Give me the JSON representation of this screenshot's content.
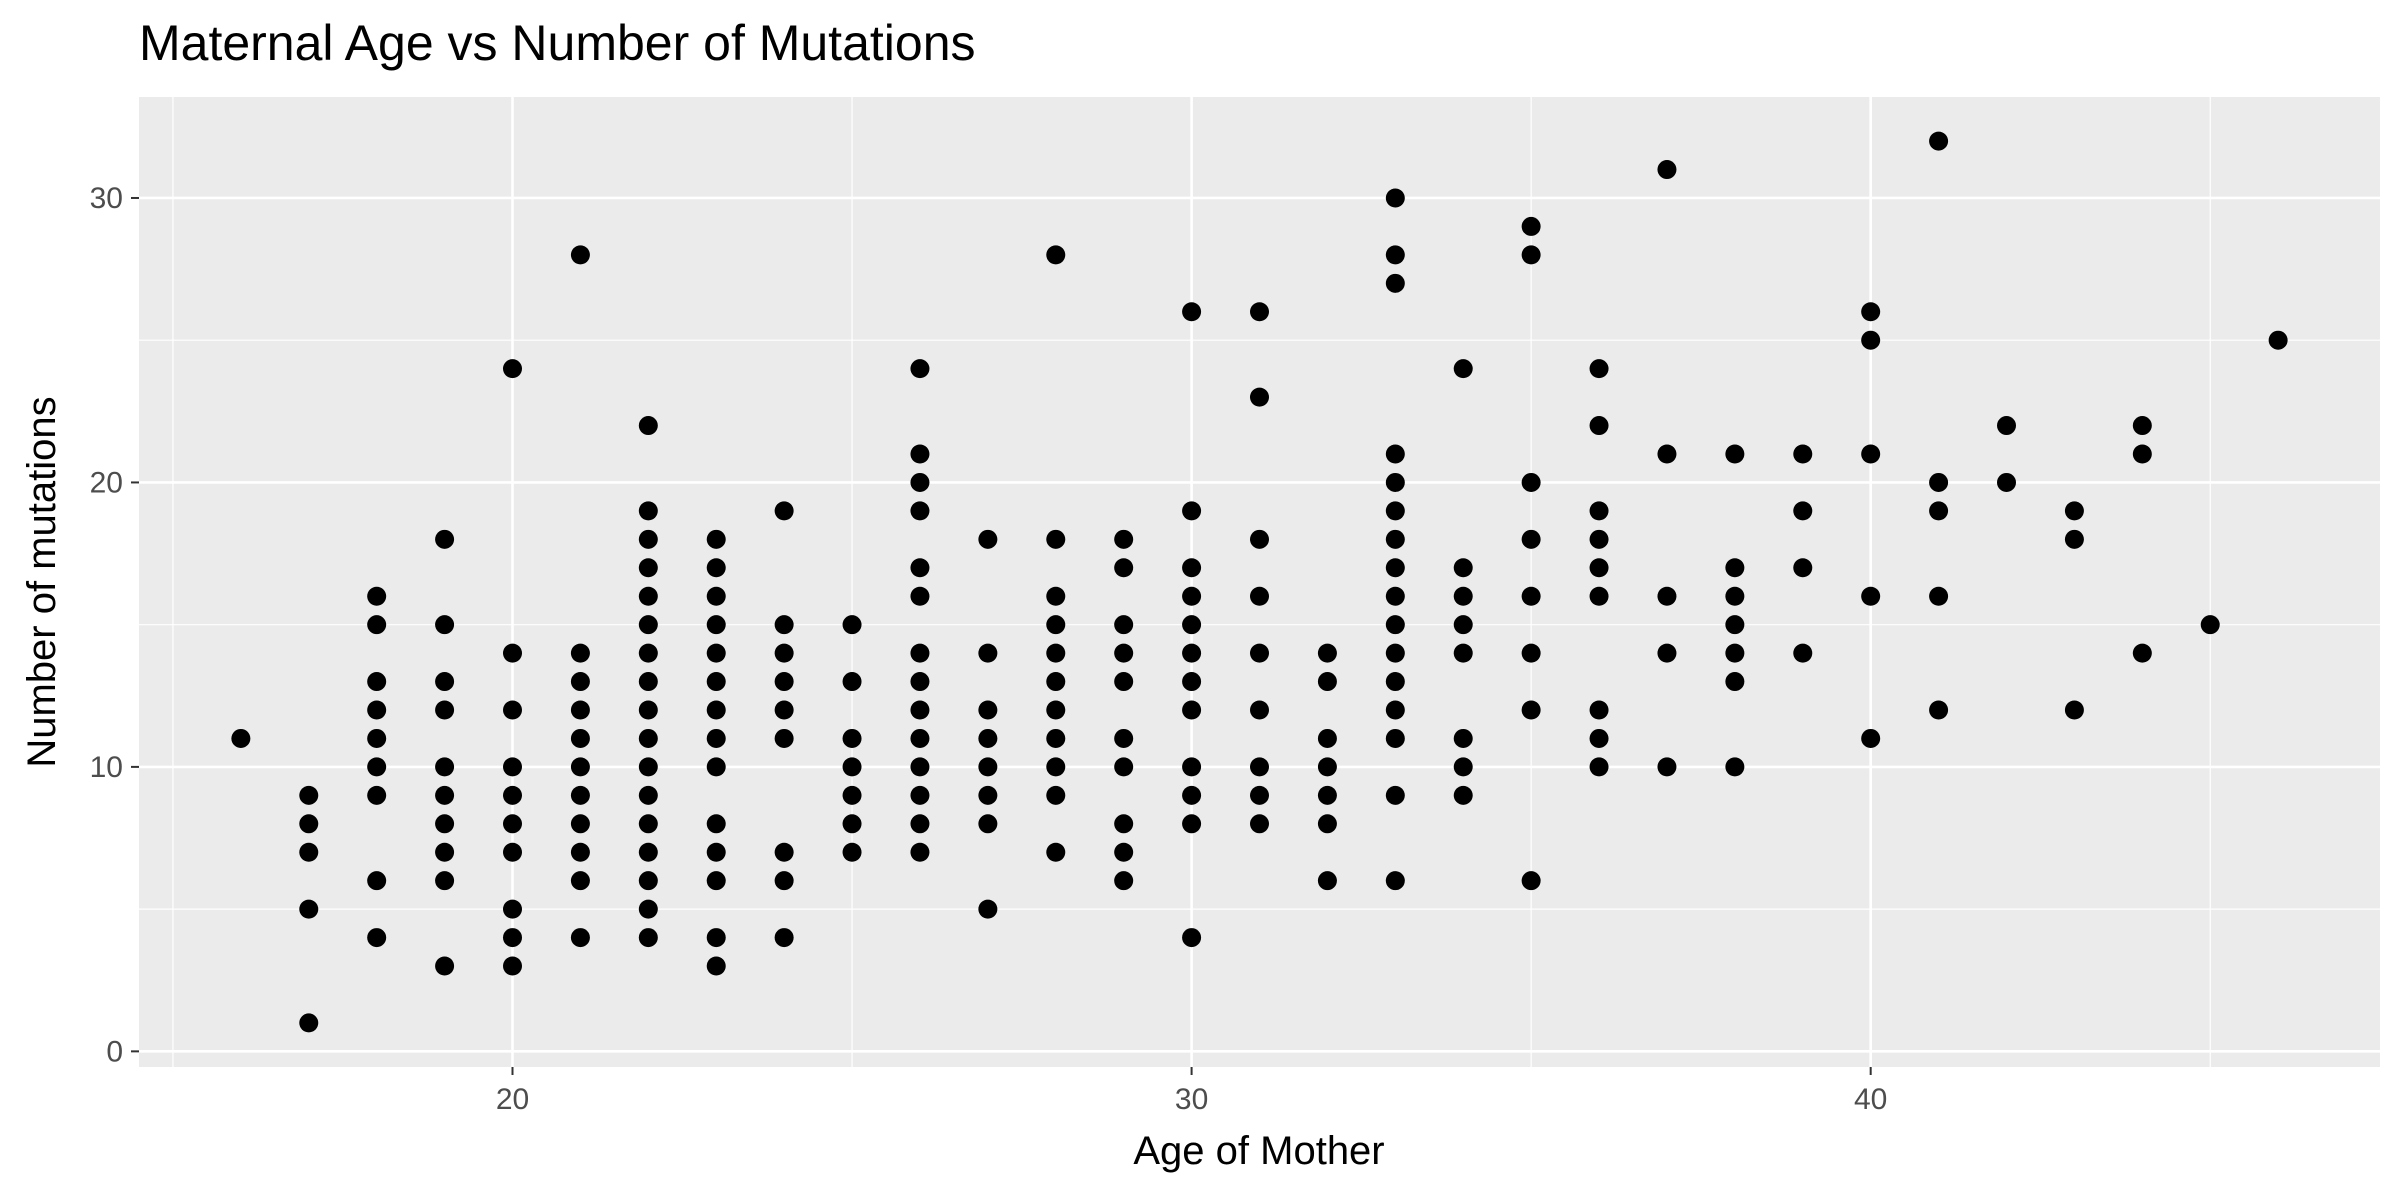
{
  "chart_data": {
    "type": "scatter",
    "title": "Maternal Age vs Number of Mutations",
    "xlabel": "Age of Mother",
    "ylabel": "Number of mutations",
    "xlim": [
      14.5,
      47.5
    ],
    "ylim": [
      -0.55,
      33.55
    ],
    "x_ticks": [
      20,
      30,
      40
    ],
    "y_ticks": [
      0,
      10,
      20,
      30
    ],
    "x_minor_ticks": [
      15,
      25,
      35,
      45
    ],
    "y_minor_ticks": [
      5,
      15,
      25
    ],
    "grid": true,
    "legend": "none",
    "colors": {
      "panel_background": "#ebebeb",
      "grid": "#ffffff",
      "point": "#000000",
      "tick_text": "#4d4d4d",
      "tick_mark": "#333333"
    },
    "points": [
      [
        16,
        11
      ],
      [
        17,
        1
      ],
      [
        17,
        5
      ],
      [
        17,
        7
      ],
      [
        17,
        8
      ],
      [
        17,
        9
      ],
      [
        18,
        4
      ],
      [
        18,
        6
      ],
      [
        18,
        9
      ],
      [
        18,
        10
      ],
      [
        18,
        11
      ],
      [
        18,
        12
      ],
      [
        18,
        13
      ],
      [
        18,
        15
      ],
      [
        18,
        16
      ],
      [
        19,
        3
      ],
      [
        19,
        6
      ],
      [
        19,
        7
      ],
      [
        19,
        8
      ],
      [
        19,
        9
      ],
      [
        19,
        10
      ],
      [
        19,
        12
      ],
      [
        19,
        13
      ],
      [
        19,
        15
      ],
      [
        19,
        18
      ],
      [
        20,
        3
      ],
      [
        20,
        4
      ],
      [
        20,
        5
      ],
      [
        20,
        7
      ],
      [
        20,
        8
      ],
      [
        20,
        9
      ],
      [
        20,
        10
      ],
      [
        20,
        12
      ],
      [
        20,
        14
      ],
      [
        20,
        24
      ],
      [
        21,
        4
      ],
      [
        21,
        6
      ],
      [
        21,
        7
      ],
      [
        21,
        8
      ],
      [
        21,
        9
      ],
      [
        21,
        10
      ],
      [
        21,
        11
      ],
      [
        21,
        12
      ],
      [
        21,
        13
      ],
      [
        21,
        14
      ],
      [
        21,
        28
      ],
      [
        22,
        4
      ],
      [
        22,
        5
      ],
      [
        22,
        6
      ],
      [
        22,
        7
      ],
      [
        22,
        8
      ],
      [
        22,
        9
      ],
      [
        22,
        10
      ],
      [
        22,
        11
      ],
      [
        22,
        12
      ],
      [
        22,
        13
      ],
      [
        22,
        14
      ],
      [
        22,
        15
      ],
      [
        22,
        16
      ],
      [
        22,
        17
      ],
      [
        22,
        18
      ],
      [
        22,
        19
      ],
      [
        22,
        22
      ],
      [
        23,
        3
      ],
      [
        23,
        4
      ],
      [
        23,
        6
      ],
      [
        23,
        7
      ],
      [
        23,
        8
      ],
      [
        23,
        10
      ],
      [
        23,
        11
      ],
      [
        23,
        12
      ],
      [
        23,
        13
      ],
      [
        23,
        14
      ],
      [
        23,
        15
      ],
      [
        23,
        16
      ],
      [
        23,
        17
      ],
      [
        23,
        18
      ],
      [
        24,
        4
      ],
      [
        24,
        6
      ],
      [
        24,
        7
      ],
      [
        24,
        11
      ],
      [
        24,
        12
      ],
      [
        24,
        13
      ],
      [
        24,
        14
      ],
      [
        24,
        15
      ],
      [
        24,
        19
      ],
      [
        25,
        7
      ],
      [
        25,
        8
      ],
      [
        25,
        9
      ],
      [
        25,
        10
      ],
      [
        25,
        11
      ],
      [
        25,
        13
      ],
      [
        25,
        15
      ],
      [
        26,
        7
      ],
      [
        26,
        8
      ],
      [
        26,
        9
      ],
      [
        26,
        10
      ],
      [
        26,
        11
      ],
      [
        26,
        12
      ],
      [
        26,
        13
      ],
      [
        26,
        14
      ],
      [
        26,
        16
      ],
      [
        26,
        17
      ],
      [
        26,
        19
      ],
      [
        26,
        20
      ],
      [
        26,
        21
      ],
      [
        26,
        24
      ],
      [
        27,
        5
      ],
      [
        27,
        8
      ],
      [
        27,
        9
      ],
      [
        27,
        10
      ],
      [
        27,
        11
      ],
      [
        27,
        12
      ],
      [
        27,
        14
      ],
      [
        27,
        18
      ],
      [
        28,
        7
      ],
      [
        28,
        9
      ],
      [
        28,
        10
      ],
      [
        28,
        11
      ],
      [
        28,
        12
      ],
      [
        28,
        13
      ],
      [
        28,
        14
      ],
      [
        28,
        15
      ],
      [
        28,
        16
      ],
      [
        28,
        18
      ],
      [
        28,
        28
      ],
      [
        29,
        6
      ],
      [
        29,
        7
      ],
      [
        29,
        8
      ],
      [
        29,
        10
      ],
      [
        29,
        11
      ],
      [
        29,
        13
      ],
      [
        29,
        14
      ],
      [
        29,
        15
      ],
      [
        29,
        17
      ],
      [
        29,
        18
      ],
      [
        30,
        4
      ],
      [
        30,
        8
      ],
      [
        30,
        9
      ],
      [
        30,
        10
      ],
      [
        30,
        12
      ],
      [
        30,
        13
      ],
      [
        30,
        14
      ],
      [
        30,
        15
      ],
      [
        30,
        16
      ],
      [
        30,
        17
      ],
      [
        30,
        19
      ],
      [
        30,
        26
      ],
      [
        31,
        8
      ],
      [
        31,
        9
      ],
      [
        31,
        10
      ],
      [
        31,
        12
      ],
      [
        31,
        14
      ],
      [
        31,
        16
      ],
      [
        31,
        18
      ],
      [
        31,
        23
      ],
      [
        31,
        26
      ],
      [
        32,
        6
      ],
      [
        32,
        8
      ],
      [
        32,
        9
      ],
      [
        32,
        10
      ],
      [
        32,
        11
      ],
      [
        32,
        13
      ],
      [
        32,
        14
      ],
      [
        33,
        6
      ],
      [
        33,
        9
      ],
      [
        33,
        11
      ],
      [
        33,
        12
      ],
      [
        33,
        13
      ],
      [
        33,
        14
      ],
      [
        33,
        15
      ],
      [
        33,
        16
      ],
      [
        33,
        17
      ],
      [
        33,
        18
      ],
      [
        33,
        19
      ],
      [
        33,
        20
      ],
      [
        33,
        21
      ],
      [
        33,
        27
      ],
      [
        33,
        28
      ],
      [
        33,
        30
      ],
      [
        34,
        9
      ],
      [
        34,
        10
      ],
      [
        34,
        11
      ],
      [
        34,
        14
      ],
      [
        34,
        15
      ],
      [
        34,
        16
      ],
      [
        34,
        17
      ],
      [
        34,
        24
      ],
      [
        35,
        6
      ],
      [
        35,
        12
      ],
      [
        35,
        14
      ],
      [
        35,
        16
      ],
      [
        35,
        18
      ],
      [
        35,
        20
      ],
      [
        35,
        28
      ],
      [
        35,
        29
      ],
      [
        36,
        10
      ],
      [
        36,
        11
      ],
      [
        36,
        12
      ],
      [
        36,
        16
      ],
      [
        36,
        17
      ],
      [
        36,
        18
      ],
      [
        36,
        19
      ],
      [
        36,
        22
      ],
      [
        36,
        24
      ],
      [
        37,
        10
      ],
      [
        37,
        14
      ],
      [
        37,
        16
      ],
      [
        37,
        21
      ],
      [
        37,
        31
      ],
      [
        38,
        10
      ],
      [
        38,
        13
      ],
      [
        38,
        14
      ],
      [
        38,
        15
      ],
      [
        38,
        16
      ],
      [
        38,
        17
      ],
      [
        38,
        21
      ],
      [
        39,
        14
      ],
      [
        39,
        17
      ],
      [
        39,
        19
      ],
      [
        39,
        21
      ],
      [
        40,
        11
      ],
      [
        40,
        16
      ],
      [
        40,
        21
      ],
      [
        40,
        25
      ],
      [
        40,
        26
      ],
      [
        41,
        12
      ],
      [
        41,
        16
      ],
      [
        41,
        19
      ],
      [
        41,
        20
      ],
      [
        41,
        32
      ],
      [
        42,
        20
      ],
      [
        42,
        22
      ],
      [
        43,
        12
      ],
      [
        43,
        18
      ],
      [
        43,
        19
      ],
      [
        44,
        14
      ],
      [
        44,
        21
      ],
      [
        44,
        22
      ],
      [
        45,
        15
      ],
      [
        46,
        25
      ]
    ]
  }
}
